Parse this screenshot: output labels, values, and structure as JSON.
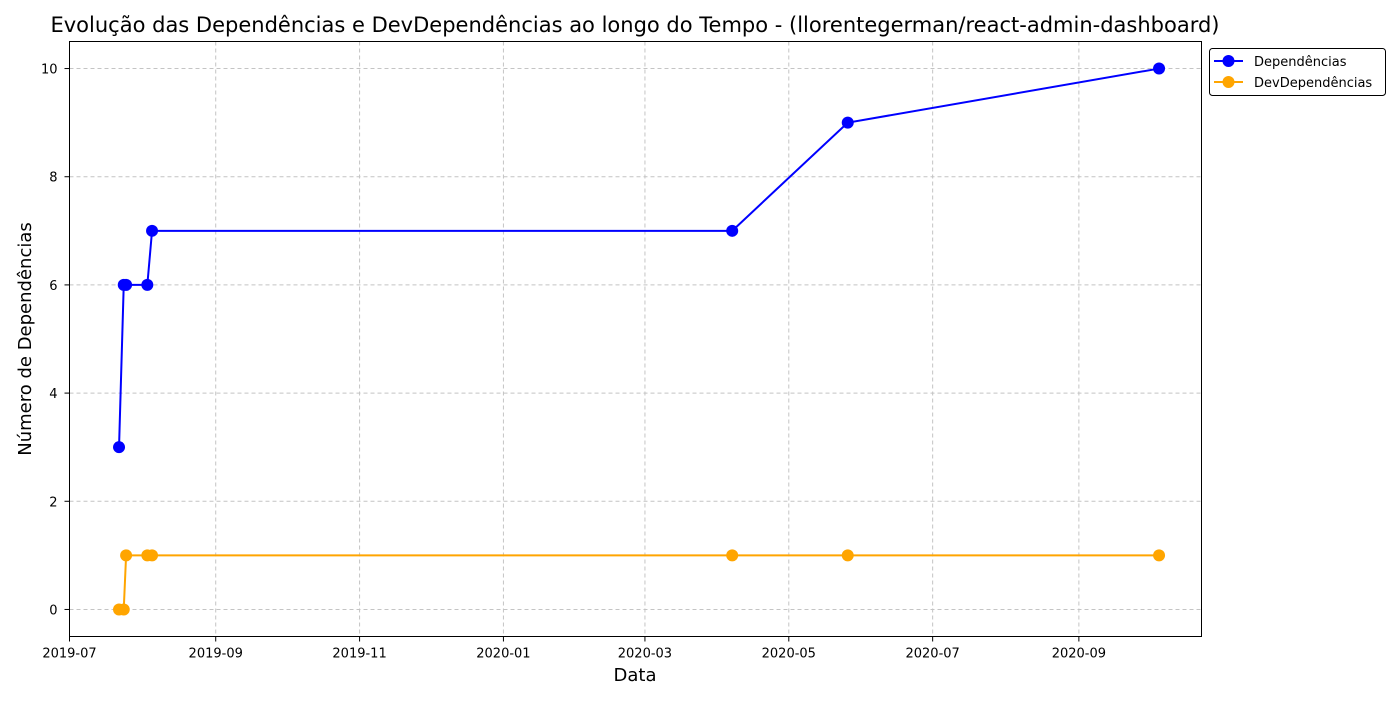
{
  "chart_data": {
    "type": "line",
    "title": "Evolução das Dependências e DevDependências ao longo do Tempo - (llorentegerman/react-admin-dashboard)",
    "xlabel": "Data",
    "ylabel": "Número de Dependências",
    "x_type": "date",
    "xlim": [
      "2019-07-01",
      "2020-10-23"
    ],
    "ylim": [
      -0.5,
      10.5
    ],
    "x_ticks": [
      "2019-07",
      "2019-09",
      "2019-11",
      "2020-01",
      "2020-03",
      "2020-05",
      "2020-07",
      "2020-09"
    ],
    "x_tick_dates": [
      "2019-07-01",
      "2019-09-01",
      "2019-11-01",
      "2020-01-01",
      "2020-03-01",
      "2020-05-01",
      "2020-07-01",
      "2020-09-01"
    ],
    "y_ticks": [
      0,
      2,
      4,
      6,
      8,
      10
    ],
    "grid": true,
    "legend_position": "outside-top-right",
    "series": [
      {
        "name": "Dependências",
        "color": "#0000ff",
        "marker": "circle",
        "points": [
          {
            "x": "2019-07-22",
            "y": 3
          },
          {
            "x": "2019-07-24",
            "y": 6
          },
          {
            "x": "2019-07-25",
            "y": 6
          },
          {
            "x": "2019-08-03",
            "y": 6
          },
          {
            "x": "2019-08-05",
            "y": 7
          },
          {
            "x": "2020-04-07",
            "y": 7
          },
          {
            "x": "2020-05-26",
            "y": 9
          },
          {
            "x": "2020-10-05",
            "y": 10
          }
        ]
      },
      {
        "name": "DevDependências",
        "color": "#ffa500",
        "marker": "circle",
        "points": [
          {
            "x": "2019-07-22",
            "y": 0
          },
          {
            "x": "2019-07-24",
            "y": 0
          },
          {
            "x": "2019-07-25",
            "y": 1
          },
          {
            "x": "2019-08-03",
            "y": 1
          },
          {
            "x": "2019-08-05",
            "y": 1
          },
          {
            "x": "2020-04-07",
            "y": 1
          },
          {
            "x": "2020-05-26",
            "y": 1
          },
          {
            "x": "2020-10-05",
            "y": 1
          }
        ]
      }
    ]
  }
}
